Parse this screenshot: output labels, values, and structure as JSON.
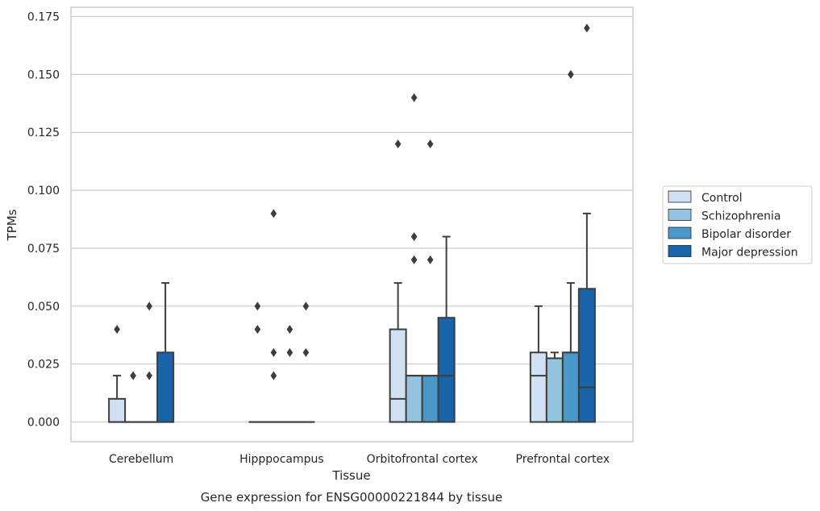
{
  "chart_data": {
    "type": "boxplot",
    "caption": "Gene expression for ENSG00000221844 by tissue",
    "xlabel": "Tissue",
    "ylabel": "TPMs",
    "ylim": [
      -0.0085,
      0.179
    ],
    "yticks": [
      "0.000",
      "0.025",
      "0.050",
      "0.075",
      "0.100",
      "0.125",
      "0.150",
      "0.175"
    ],
    "grid": true,
    "legend_position": "right",
    "categories": [
      "Cerebellum",
      "Hipppocampus",
      "Orbitofrontal cortex",
      "Prefrontal cortex"
    ],
    "series": [
      {
        "name": "Control",
        "color": "#d0e1f2",
        "boxes": [
          {
            "q1": 0.0,
            "median": 0.0,
            "q3": 0.01,
            "whisker_low": 0.0,
            "whisker_high": 0.02,
            "outliers": [
              0.04
            ]
          },
          {
            "q1": 0.0,
            "median": 0.0,
            "q3": 0.0,
            "whisker_low": 0.0,
            "whisker_high": 0.0,
            "outliers": [
              0.04,
              0.05
            ]
          },
          {
            "q1": 0.0,
            "median": 0.01,
            "q3": 0.04,
            "whisker_low": 0.0,
            "whisker_high": 0.06,
            "outliers": [
              0.12
            ]
          },
          {
            "q1": 0.0,
            "median": 0.02,
            "q3": 0.03,
            "whisker_low": 0.0,
            "whisker_high": 0.05,
            "outliers": []
          }
        ]
      },
      {
        "name": "Schizophrenia",
        "color": "#94c4df",
        "boxes": [
          {
            "q1": 0.0,
            "median": 0.0,
            "q3": 0.0,
            "whisker_low": 0.0,
            "whisker_high": 0.0,
            "outliers": [
              0.02
            ]
          },
          {
            "q1": 0.0,
            "median": 0.0,
            "q3": 0.0,
            "whisker_low": 0.0,
            "whisker_high": 0.0,
            "outliers": [
              0.02,
              0.03,
              0.09
            ]
          },
          {
            "q1": 0.0,
            "median": 0.02,
            "q3": 0.02,
            "whisker_low": 0.0,
            "whisker_high": 0.02,
            "outliers": [
              0.07,
              0.08,
              0.14
            ]
          },
          {
            "q1": 0.0,
            "median": 0.0275,
            "q3": 0.0275,
            "whisker_low": 0.0,
            "whisker_high": 0.03,
            "outliers": []
          }
        ]
      },
      {
        "name": "Bipolar disorder",
        "color": "#4a98c9",
        "boxes": [
          {
            "q1": 0.0,
            "median": 0.0,
            "q3": 0.0,
            "whisker_low": 0.0,
            "whisker_high": 0.0,
            "outliers": [
              0.02,
              0.05
            ]
          },
          {
            "q1": 0.0,
            "median": 0.0,
            "q3": 0.0,
            "whisker_low": 0.0,
            "whisker_high": 0.0,
            "outliers": [
              0.03,
              0.04
            ]
          },
          {
            "q1": 0.0,
            "median": 0.02,
            "q3": 0.02,
            "whisker_low": 0.0,
            "whisker_high": 0.02,
            "outliers": [
              0.07,
              0.12
            ]
          },
          {
            "q1": 0.0,
            "median": 0.03,
            "q3": 0.03,
            "whisker_low": 0.0,
            "whisker_high": 0.06,
            "outliers": [
              0.15
            ]
          }
        ]
      },
      {
        "name": "Major depression",
        "color": "#1764ab",
        "boxes": [
          {
            "q1": 0.0,
            "median": 0.0,
            "q3": 0.03,
            "whisker_low": 0.0,
            "whisker_high": 0.06,
            "outliers": []
          },
          {
            "q1": 0.0,
            "median": 0.0,
            "q3": 0.0,
            "whisker_low": 0.0,
            "whisker_high": 0.0,
            "outliers": [
              0.03,
              0.05
            ]
          },
          {
            "q1": 0.0,
            "median": 0.02,
            "q3": 0.045,
            "whisker_low": 0.0,
            "whisker_high": 0.08,
            "outliers": []
          },
          {
            "q1": 0.0,
            "median": 0.015,
            "q3": 0.0575,
            "whisker_low": 0.0,
            "whisker_high": 0.09,
            "outliers": [
              0.17
            ]
          }
        ]
      }
    ]
  }
}
